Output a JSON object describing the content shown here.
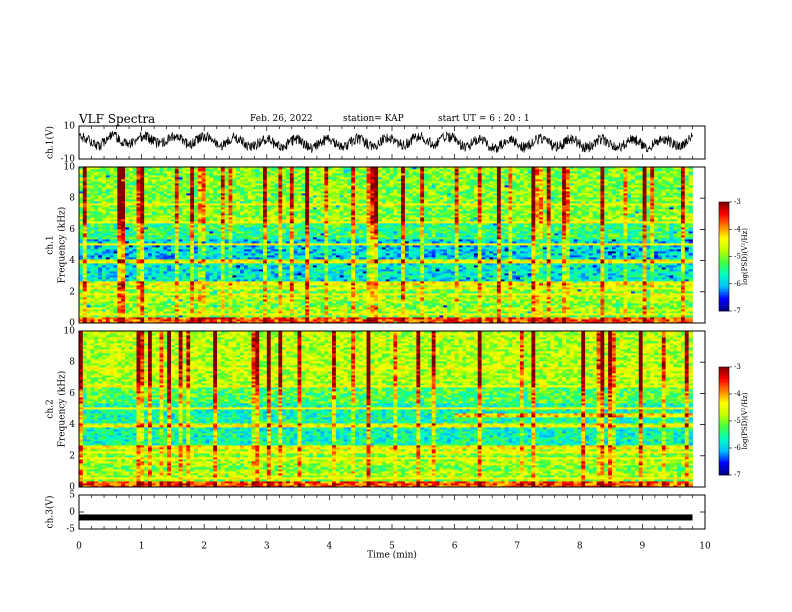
{
  "header": {
    "title": "VLF Spectra",
    "date": "Feb. 26, 2022",
    "station": "station= KAP",
    "start": "start  UT =   6  : 20 : 1"
  },
  "chart_data": [
    {
      "type": "line",
      "name": "waveform-ch1",
      "ylabel": "ch.1(V)",
      "ylim": [
        -10,
        10
      ],
      "yticks": [
        "10",
        "-10"
      ],
      "xlim": [
        0,
        10
      ],
      "x_end": 9.8,
      "baseline_value": 0
    },
    {
      "type": "heatmap",
      "name": "spectrogram-ch1",
      "ylabel_channel": "ch.1",
      "ylabel": "Frequency (kHz)",
      "ylim": [
        0,
        10
      ],
      "yticks": [
        "0",
        "2",
        "4",
        "6",
        "8",
        "10"
      ],
      "xlim": [
        0,
        10
      ],
      "x_end": 9.8,
      "colorbar": {
        "label": "log(PSD)(V²/Hz)",
        "range": [
          -7,
          -3
        ],
        "ticks": [
          "-3",
          "-4",
          "-5",
          "-6",
          "-7"
        ]
      }
    },
    {
      "type": "heatmap",
      "name": "spectrogram-ch2",
      "ylabel_channel": "ch.2",
      "ylabel": "Frequency (kHz)",
      "ylim": [
        0,
        10
      ],
      "yticks": [
        "0",
        "2",
        "4",
        "6",
        "8",
        "10"
      ],
      "xlim": [
        0,
        10
      ],
      "x_end": 9.8,
      "colorbar": {
        "label": "log(PSD)(V²/Hz)",
        "range": [
          -7,
          -3
        ],
        "ticks": [
          "-3",
          "-4",
          "-5",
          "-6",
          "-7"
        ]
      }
    },
    {
      "type": "line",
      "name": "waveform-ch3",
      "ylabel": "ch.3(V)",
      "ylim": [
        -5,
        5
      ],
      "yticks": [
        "5",
        "0",
        "-5"
      ],
      "xlim": [
        0,
        10
      ],
      "x_end": 9.8,
      "value": -1.6
    }
  ],
  "xaxis": {
    "label": "Time (min)",
    "ticks": [
      "0",
      "1",
      "2",
      "3",
      "4",
      "5",
      "6",
      "7",
      "8",
      "9",
      "10"
    ]
  },
  "colors": {
    "frame": "#000000",
    "colormap": [
      "#000080",
      "#0000ff",
      "#00c0ff",
      "#00ffc0",
      "#40ff40",
      "#c0ff00",
      "#ffff00",
      "#ff8000",
      "#ff0000",
      "#800000"
    ]
  }
}
